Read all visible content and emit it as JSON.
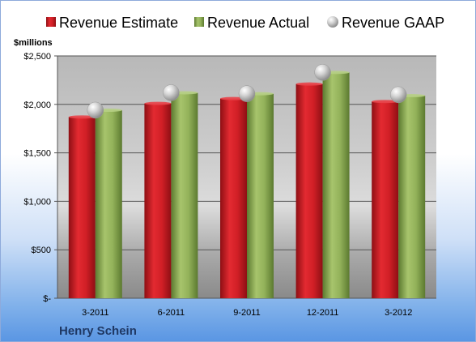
{
  "chart_data": {
    "type": "bar",
    "categories": [
      "3-2011",
      "6-2011",
      "9-2011",
      "12-2011",
      "3-2012"
    ],
    "series": [
      {
        "name": "Revenue Estimate",
        "kind": "bar",
        "color": "#c0161f",
        "values": [
          1870,
          2010,
          2060,
          2210,
          2030
        ]
      },
      {
        "name": "Revenue Actual",
        "kind": "bar",
        "color": "#8cac55",
        "values": [
          1940,
          2120,
          2110,
          2330,
          2090
        ]
      },
      {
        "name": "Revenue GAAP",
        "kind": "marker",
        "color": "#b8b8b8",
        "values": [
          1940,
          2120,
          2110,
          2330,
          2100
        ]
      }
    ],
    "ylabel": "$millions",
    "ylim": [
      0,
      2500
    ],
    "yticks": [
      {
        "value": 0,
        "label": "$-"
      },
      {
        "value": 500,
        "label": "$500"
      },
      {
        "value": 1000,
        "label": "$1,000"
      },
      {
        "value": 1500,
        "label": "$1,500"
      },
      {
        "value": 2000,
        "label": "$2,000"
      },
      {
        "value": 2500,
        "label": "$2,500"
      }
    ],
    "grid": true,
    "legend_position": "top"
  },
  "company": "Henry Schein"
}
